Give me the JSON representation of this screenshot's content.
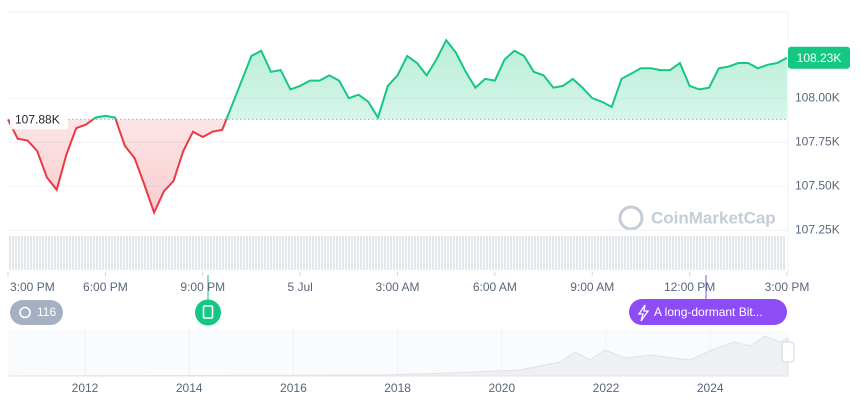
{
  "chart_data": {
    "type": "line",
    "x": [
      0,
      0.3,
      0.6,
      0.9,
      1.2,
      1.5,
      1.8,
      2.1,
      2.4,
      2.7,
      3,
      3.3,
      3.6,
      3.9,
      4.2,
      4.5,
      4.8,
      5.1,
      5.4,
      5.7,
      6,
      6.3,
      6.6,
      6.9,
      7.2,
      7.5,
      7.8,
      8.1,
      8.4,
      8.7,
      9,
      9.3,
      9.6,
      9.9,
      10.2,
      10.5,
      10.8,
      11.1,
      11.4,
      11.7,
      12,
      12.3,
      12.6,
      12.9,
      13.2,
      13.5,
      13.8,
      14.1,
      14.4,
      14.7,
      15,
      15.3,
      15.6,
      15.9,
      16.2,
      16.5,
      16.8,
      17.1,
      17.4,
      17.7,
      18,
      18.3,
      18.6,
      18.9,
      19.2,
      19.5,
      19.8,
      20.1,
      20.4,
      20.7,
      21,
      21.3,
      21.6,
      21.9,
      22.2,
      22.5,
      22.8,
      23.1,
      23.4,
      23.7,
      24
    ],
    "values": [
      107.88,
      107.77,
      107.76,
      107.7,
      107.55,
      107.48,
      107.68,
      107.83,
      107.85,
      107.89,
      107.9,
      107.89,
      107.73,
      107.66,
      107.51,
      107.35,
      107.47,
      107.53,
      107.7,
      107.81,
      107.78,
      107.81,
      107.82,
      107.96,
      108.1,
      108.24,
      108.27,
      108.15,
      108.16,
      108.05,
      108.07,
      108.1,
      108.1,
      108.13,
      108.1,
      108.0,
      108.02,
      107.98,
      107.89,
      108.07,
      108.13,
      108.24,
      108.2,
      108.13,
      108.22,
      108.33,
      108.26,
      108.15,
      108.06,
      108.11,
      108.1,
      108.22,
      108.27,
      108.24,
      108.15,
      108.13,
      108.06,
      108.07,
      108.11,
      108.06,
      108.0,
      107.98,
      107.95,
      108.11,
      108.14,
      108.17,
      108.17,
      108.16,
      108.16,
      108.2,
      108.07,
      108.05,
      108.06,
      108.17,
      108.18,
      108.2,
      108.2,
      108.17,
      108.19,
      108.2,
      108.23
    ],
    "color_up": "#16c784",
    "color_down": "#ea3943",
    "baseline": {
      "value": 107.88,
      "label": "107.88K"
    },
    "current_price": {
      "value": 108.23,
      "label": "108.23K"
    },
    "xlim": [
      0,
      24
    ],
    "xticks": [
      {
        "value": 0,
        "label": "3:00 PM"
      },
      {
        "value": 3,
        "label": "6:00 PM"
      },
      {
        "value": 6,
        "label": "9:00 PM"
      },
      {
        "value": 9,
        "label": "5 Jul"
      },
      {
        "value": 12,
        "label": "3:00 AM"
      },
      {
        "value": 15,
        "label": "6:00 AM"
      },
      {
        "value": 18,
        "label": "9:00 AM"
      },
      {
        "value": 21,
        "label": "12:00 PM"
      },
      {
        "value": 24,
        "label": "3:00 PM"
      }
    ],
    "ylim": [
      107.24,
      108.49
    ],
    "yticks": [
      {
        "value": 107.25,
        "label": "107.25K"
      },
      {
        "value": 107.5,
        "label": "107.50K"
      },
      {
        "value": 107.75,
        "label": "107.75K"
      },
      {
        "value": 108,
        "label": "108.00K"
      }
    ],
    "grid": true
  },
  "events": {
    "count": 116,
    "news": "A long-dormant Bit..."
  },
  "watermark": "CoinMarketCap",
  "overview": {
    "years": [
      "2012",
      "2014",
      "2016",
      "2018",
      "2020",
      "2022",
      "2024"
    ]
  }
}
